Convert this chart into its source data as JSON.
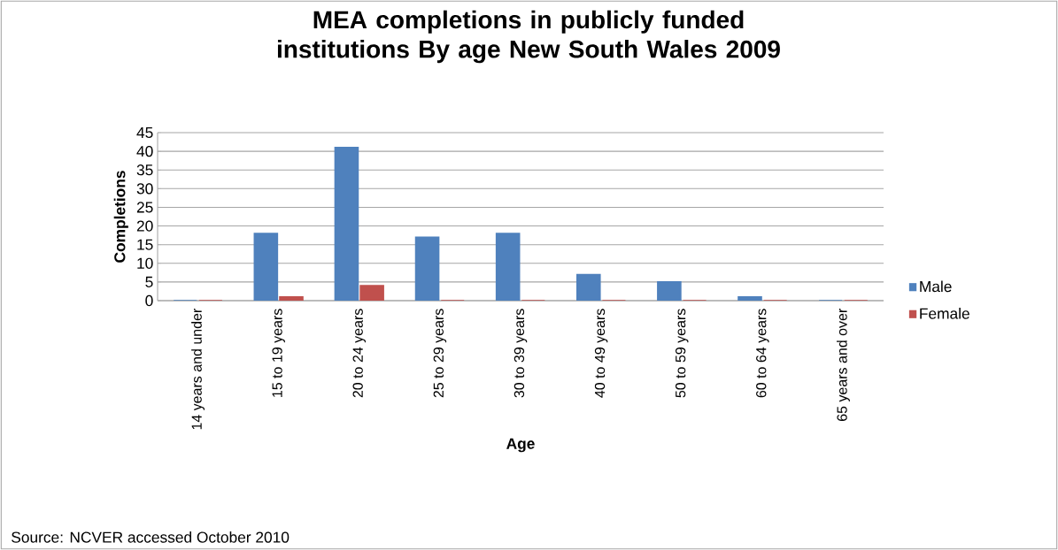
{
  "chart_data": {
    "type": "bar",
    "title": "MEA completions in publicly funded institutions By age New South Wales 2009",
    "xlabel": "Age",
    "ylabel": "Completions",
    "categories": [
      "14 years and under",
      "15 to 19 years",
      "20 to 24 years",
      "25 to 29 years",
      "30 to 39 years",
      "40 to 49 years",
      "50 to 59 years",
      "60 to 64 years",
      "65 years and over"
    ],
    "series": [
      {
        "name": "Male",
        "color": "#4f81bd",
        "values": [
          0,
          18,
          41,
          17,
          18,
          7,
          5,
          1,
          0
        ]
      },
      {
        "name": "Female",
        "color": "#c0504d",
        "values": [
          0,
          1,
          4,
          0,
          0,
          0,
          0,
          0,
          0
        ]
      }
    ],
    "ylim": [
      0,
      45
    ],
    "yticks": [
      0,
      5,
      10,
      15,
      20,
      25,
      30,
      35,
      40,
      45
    ],
    "grid": "y",
    "legend": "right",
    "annotations": [
      "Source: NCVER accessed October 2010"
    ]
  }
}
